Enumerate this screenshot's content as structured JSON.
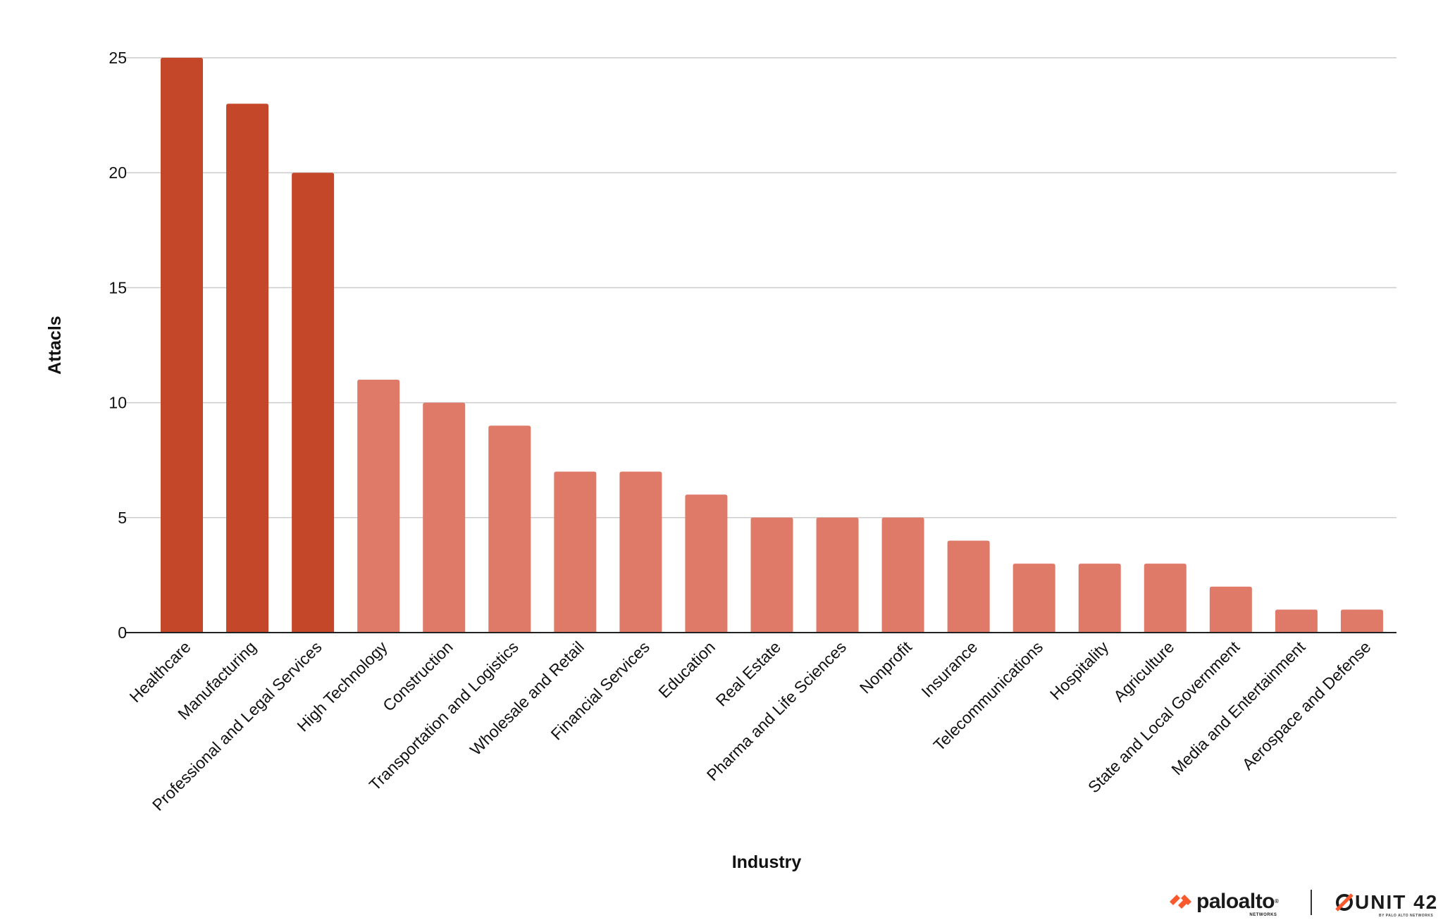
{
  "chart_data": {
    "type": "bar",
    "xlabel": "Industry",
    "ylabel": "Attacls",
    "ylim": [
      0,
      25
    ],
    "yticks": [
      0,
      5,
      10,
      15,
      20,
      25
    ],
    "grid": true,
    "categories": [
      "Healthcare",
      "Manufacturing",
      "Professional and Legal Services",
      "High Technology",
      "Construction",
      "Transportation and Logistics",
      "Wholesale and Retail",
      "Financial Services",
      "Education",
      "Real Estate",
      "Pharma and Life Sciences",
      "Nonprofit",
      "Insurance",
      "Telecommunications",
      "Hospitality",
      "Agriculture",
      "State and Local Government",
      "Media and Entertainment",
      "Aerospace and Defense"
    ],
    "values": [
      25,
      23,
      20,
      11,
      10,
      9,
      7,
      7,
      6,
      5,
      5,
      5,
      4,
      3,
      3,
      3,
      2,
      1,
      1
    ],
    "highlight_count": 3,
    "colors": {
      "highlight": "#c5472a",
      "normal": "#df7a69",
      "grid": "#cccccc",
      "axis": "#222222"
    }
  },
  "branding": {
    "paloalto": "paloalto",
    "paloalto_sub": "NETWORKS",
    "unit42": "UNIT 42",
    "unit42_sub": "BY PALO ALTO NETWORKS",
    "accent": "#fa582d"
  }
}
